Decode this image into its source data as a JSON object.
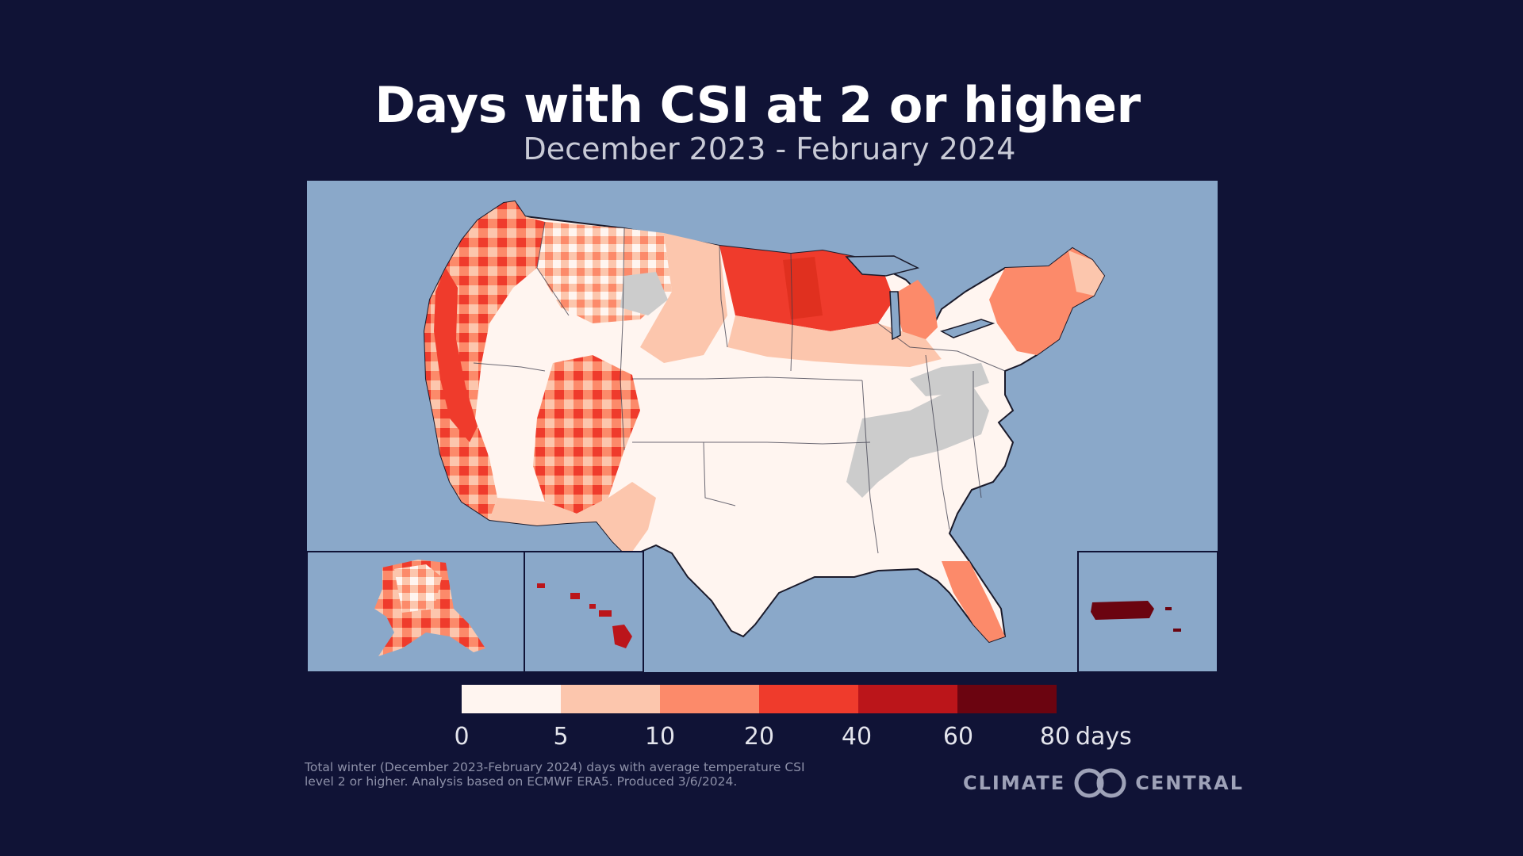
{
  "title": "Days with CSI at 2 or higher",
  "subtitle": "December 2023 - February 2024",
  "legend": {
    "ticks": [
      "0",
      "5",
      "10",
      "20",
      "40",
      "60",
      "80"
    ],
    "unit": "days",
    "colors": [
      "#fff5f0",
      "#fcc6ad",
      "#fc8a6a",
      "#ef3b2c",
      "#bb151a",
      "#6b0410"
    ]
  },
  "map_colors": {
    "ocean": "#8aa8c9",
    "no_data": "#cccccc",
    "border": "#2a2a3a"
  },
  "note": "Total winter (December 2023-February 2024) days with average temperature CSI level 2 or higher. Analysis based on ECMWF ERA5. Produced 3/6/2024.",
  "logo": {
    "left": "CLIMATE",
    "right": "CENTRAL",
    "icon": "climate-central-rings-icon"
  }
}
